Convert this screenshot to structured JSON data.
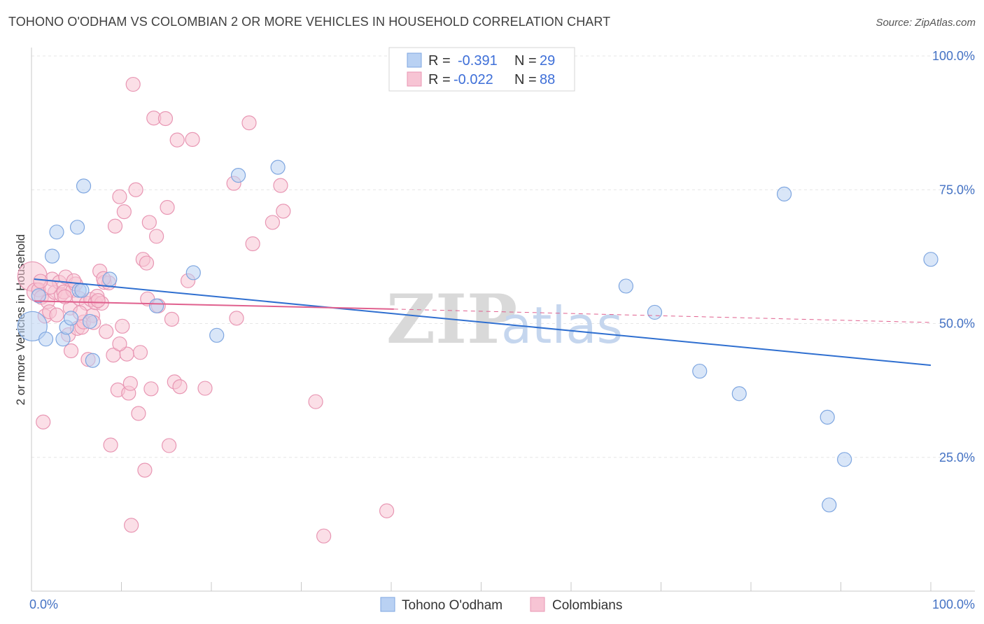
{
  "header": {
    "title": "TOHONO O'ODHAM VS COLOMBIAN 2 OR MORE VEHICLES IN HOUSEHOLD CORRELATION CHART",
    "source": "Source: ZipAtlas.com"
  },
  "watermark": {
    "zip": "ZIP",
    "atlas": "atlas"
  },
  "legend_top": {
    "r_label": "R =",
    "n_label": "N =",
    "rows": [
      {
        "r": "-0.391",
        "n": "29"
      },
      {
        "r": "-0.022",
        "n": "88"
      }
    ]
  },
  "legend_bottom": {
    "items": [
      {
        "label": "Tohono O'odham"
      },
      {
        "label": "Colombians"
      }
    ]
  },
  "colors": {
    "blue_fill": "#b9d1f3",
    "blue_stroke": "#7ea6e0",
    "blue_line": "#2f6fd0",
    "pink_fill": "#f7c4d4",
    "pink_stroke": "#e896b3",
    "pink_line": "#e0608e",
    "grid": "#e6e6e6"
  },
  "chart_data": {
    "type": "scatter",
    "title": "TOHONO O'ODHAM VS COLOMBIAN 2 OR MORE VEHICLES IN HOUSEHOLD CORRELATION CHART",
    "xlabel": "",
    "ylabel": "2 or more Vehicles in Household",
    "xlim": [
      0,
      100
    ],
    "ylim": [
      0,
      100
    ],
    "x_ticks": [
      {
        "value": 0,
        "label": "0.0%"
      },
      {
        "value": 100,
        "label": "100.0%"
      }
    ],
    "y_ticks": [
      {
        "value": 25,
        "label": "25.0%"
      },
      {
        "value": 50,
        "label": "50.0%"
      },
      {
        "value": 75,
        "label": "75.0%"
      },
      {
        "value": 100,
        "label": "100.0%"
      }
    ],
    "series": [
      {
        "name": "Tohono O'odham",
        "color": "#7ea6e0",
        "trend": {
          "x0": 0.3,
          "y0": 58.3,
          "x1": 100,
          "y1": 42.2
        },
        "points": [
          [
            0.1,
            49.5,
            22
          ],
          [
            0.8,
            55.2,
            11
          ],
          [
            1.6,
            47.1,
            11
          ],
          [
            2.3,
            62.6,
            11
          ],
          [
            2.8,
            67.1,
            11
          ],
          [
            3.5,
            47.1,
            11
          ],
          [
            3.9,
            49.3,
            11
          ],
          [
            4.4,
            51.0,
            11
          ],
          [
            5.1,
            68.0,
            11
          ],
          [
            5.3,
            56.2,
            11
          ],
          [
            5.8,
            75.7,
            11
          ],
          [
            6.5,
            50.4,
            11
          ],
          [
            6.8,
            43.1,
            11
          ],
          [
            8.7,
            58.3,
            11
          ],
          [
            13.9,
            53.3,
            11
          ],
          [
            18.0,
            59.5,
            11
          ],
          [
            20.6,
            47.8,
            11
          ],
          [
            23.0,
            77.7,
            11
          ],
          [
            27.4,
            79.2,
            11
          ],
          [
            66.1,
            57.0,
            11
          ],
          [
            69.3,
            52.1,
            11
          ],
          [
            74.3,
            41.1,
            11
          ],
          [
            78.7,
            36.9,
            11
          ],
          [
            83.7,
            74.2,
            11
          ],
          [
            88.5,
            32.5,
            11
          ],
          [
            88.7,
            16.1,
            11
          ],
          [
            90.4,
            24.6,
            11
          ],
          [
            100.0,
            62.0,
            11
          ],
          [
            5.6,
            56.2,
            11
          ]
        ]
      },
      {
        "name": "Colombians",
        "color": "#e896b3",
        "trend": {
          "x0": 0.3,
          "y0": 54.2,
          "x1": 40.3,
          "y1": 52.7,
          "dash_x1": 100,
          "dash_y1": 50.2
        },
        "points": [
          [
            0.1,
            58.8,
            22
          ],
          [
            0.5,
            55.9,
            14
          ],
          [
            0.8,
            56.3,
            11
          ],
          [
            1.1,
            54.9,
            11
          ],
          [
            1.3,
            31.6,
            11
          ],
          [
            1.5,
            51.4,
            11
          ],
          [
            1.8,
            54.1,
            11
          ],
          [
            2.0,
            52.2,
            11
          ],
          [
            2.3,
            58.3,
            11
          ],
          [
            2.6,
            55.8,
            11
          ],
          [
            2.8,
            51.6,
            11
          ],
          [
            3.1,
            57.7,
            11
          ],
          [
            3.3,
            55.4,
            11
          ],
          [
            3.6,
            55.9,
            11
          ],
          [
            3.8,
            58.7,
            11
          ],
          [
            4.1,
            47.9,
            11
          ],
          [
            4.3,
            52.9,
            11
          ],
          [
            4.4,
            44.9,
            11
          ],
          [
            4.6,
            56.2,
            11
          ],
          [
            4.9,
            57.4,
            11
          ],
          [
            5.1,
            49.1,
            11
          ],
          [
            5.3,
            54.7,
            11
          ],
          [
            5.6,
            49.3,
            11
          ],
          [
            5.8,
            50.3,
            11
          ],
          [
            6.1,
            53.8,
            11
          ],
          [
            6.3,
            43.3,
            11
          ],
          [
            6.6,
            54.5,
            11
          ],
          [
            6.8,
            51.5,
            11
          ],
          [
            7.1,
            53.9,
            11
          ],
          [
            7.3,
            55.1,
            11
          ],
          [
            7.6,
            59.8,
            11
          ],
          [
            7.8,
            53.8,
            11
          ],
          [
            8.1,
            57.7,
            11
          ],
          [
            8.3,
            48.5,
            11
          ],
          [
            8.6,
            57.6,
            11
          ],
          [
            8.8,
            27.3,
            11
          ],
          [
            9.1,
            44.1,
            11
          ],
          [
            9.3,
            68.2,
            11
          ],
          [
            9.6,
            37.6,
            11
          ],
          [
            9.8,
            73.7,
            11
          ],
          [
            10.1,
            49.5,
            11
          ],
          [
            10.3,
            70.9,
            11
          ],
          [
            10.6,
            44.3,
            11
          ],
          [
            10.8,
            37.0,
            11
          ],
          [
            11.0,
            38.8,
            11
          ],
          [
            11.1,
            12.3,
            11
          ],
          [
            11.3,
            94.7,
            11
          ],
          [
            11.6,
            75.0,
            11
          ],
          [
            11.9,
            33.2,
            11
          ],
          [
            12.1,
            44.6,
            11
          ],
          [
            12.4,
            62.0,
            11
          ],
          [
            12.6,
            22.6,
            11
          ],
          [
            12.9,
            54.6,
            11
          ],
          [
            13.1,
            68.9,
            11
          ],
          [
            13.3,
            37.8,
            11
          ],
          [
            13.6,
            88.4,
            11
          ],
          [
            13.9,
            66.3,
            11
          ],
          [
            14.1,
            53.3,
            11
          ],
          [
            14.9,
            88.3,
            11
          ],
          [
            15.1,
            71.7,
            11
          ],
          [
            15.3,
            27.2,
            11
          ],
          [
            15.6,
            50.8,
            11
          ],
          [
            15.9,
            39.1,
            11
          ],
          [
            16.2,
            84.3,
            11
          ],
          [
            16.5,
            38.2,
            11
          ],
          [
            17.4,
            58.0,
            11
          ],
          [
            17.9,
            84.4,
            11
          ],
          [
            19.3,
            37.9,
            11
          ],
          [
            22.5,
            76.2,
            11
          ],
          [
            22.8,
            51.0,
            11
          ],
          [
            24.2,
            87.5,
            11
          ],
          [
            24.6,
            64.9,
            11
          ],
          [
            26.8,
            68.9,
            11
          ],
          [
            27.7,
            75.8,
            11
          ],
          [
            28.0,
            71.0,
            11
          ],
          [
            31.6,
            35.4,
            11
          ],
          [
            32.5,
            10.3,
            11
          ],
          [
            39.5,
            15.0,
            11
          ],
          [
            12.8,
            61.3,
            11
          ],
          [
            6.9,
            50.2,
            11
          ],
          [
            2.1,
            56.8,
            11
          ],
          [
            3.7,
            55.0,
            11
          ],
          [
            5.4,
            52.0,
            11
          ],
          [
            7.4,
            54.3,
            11
          ],
          [
            9.8,
            46.2,
            11
          ],
          [
            1.0,
            57.9,
            11
          ],
          [
            4.7,
            58.0,
            11
          ],
          [
            8.0,
            58.4,
            11
          ]
        ]
      }
    ]
  }
}
